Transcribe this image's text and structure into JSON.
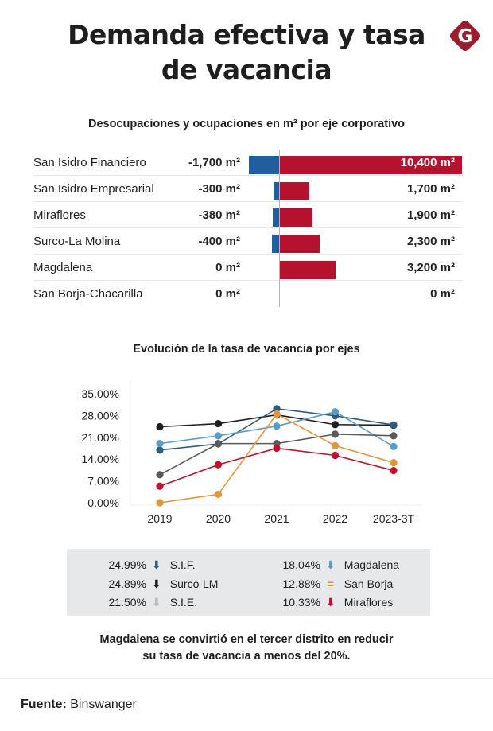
{
  "header": {
    "title_line1": "Demanda efectiva y tasa",
    "title_line2": "de vacancia",
    "logo_letter": "G",
    "logo_color": "#9b1c2c"
  },
  "colors": {
    "negative": "#1f5fa0",
    "positive": "#b5122e"
  },
  "chart_data": [
    {
      "type": "bar",
      "title": "Desocupaciones y ocupaciones en m² por eje corporativo",
      "orientation": "horizontal-diverging",
      "categories": [
        "San Isidro Financiero",
        "San Isidro Empresarial",
        "Miraflores",
        "Surco-La Molina",
        "Magdalena",
        "San Borja-Chacarilla"
      ],
      "series": [
        {
          "name": "Desocupaciones",
          "values": [
            -1700,
            -300,
            -380,
            -400,
            0,
            0
          ],
          "labels": [
            "-1,700 m²",
            "-300 m²",
            "-380 m²",
            "-400 m²",
            "0 m²",
            "0 m²"
          ],
          "color": "#1f5fa0"
        },
        {
          "name": "Ocupaciones",
          "values": [
            10400,
            1700,
            1900,
            2300,
            3200,
            0
          ],
          "labels": [
            "10,400 m²",
            "1,700 m²",
            "1,900 m²",
            "2,300 m²",
            "3,200 m²",
            "0 m²"
          ],
          "color": "#b5122e"
        }
      ],
      "xlabel": "",
      "ylabel": "",
      "unit": "m²"
    },
    {
      "type": "line",
      "title": "Evolución de la tasa de vacancia por ejes",
      "x": [
        "2019",
        "2020",
        "2021",
        "2022",
        "2023-3T"
      ],
      "ylim": [
        0,
        35
      ],
      "yticks": [
        "0.00%",
        "7.00%",
        "14.00%",
        "21.00%",
        "28.00%",
        "35.00%"
      ],
      "ytick_values": [
        0,
        7,
        14,
        21,
        28,
        35
      ],
      "xlabel": "",
      "ylabel": "",
      "grid": false,
      "series": [
        {
          "name": "Surco-LM",
          "color": "#1e1e1e",
          "values": [
            24.4,
            25.4,
            28.2,
            25.1,
            24.89
          ]
        },
        {
          "name": "S.I.F.",
          "color": "#2f5b7e",
          "values": [
            16.9,
            18.9,
            30.2,
            27.9,
            24.99
          ]
        },
        {
          "name": "Magdalena",
          "color": "#5b9bc8",
          "values": [
            19.0,
            21.5,
            24.6,
            29.2,
            18.04
          ]
        },
        {
          "name": "S.I.E.",
          "color": "#5a5a5a",
          "values": [
            9.0,
            19.0,
            19.0,
            22.0,
            21.5
          ]
        },
        {
          "name": "San Borja",
          "color": "#e3953a",
          "values": [
            0.0,
            2.7,
            28.5,
            18.3,
            12.88
          ]
        },
        {
          "name": "Miraflores",
          "color": "#c1122e",
          "values": [
            5.3,
            12.2,
            17.5,
            15.2,
            10.33
          ]
        }
      ]
    }
  ],
  "legend": [
    {
      "value": "24.99%",
      "arrow": "⬇",
      "arrow_color": "#2f5b7e",
      "name": "S.I.F."
    },
    {
      "value": "24.89%",
      "arrow": "⬇",
      "arrow_color": "#1e1e1e",
      "name": "Surco-LM"
    },
    {
      "value": "21.50%",
      "arrow": "⬇",
      "arrow_color": "#b8b8b8",
      "name": "S.I.E."
    },
    {
      "value": "18.04%",
      "arrow": "⬇",
      "arrow_color": "#5b9bc8",
      "name": "Magdalena"
    },
    {
      "value": "12.88%",
      "arrow": "=",
      "arrow_color": "#e3953a",
      "name": "San Borja"
    },
    {
      "value": "10.33%",
      "arrow": "⬇",
      "arrow_color": "#b5122e",
      "name": "Miraflores"
    }
  ],
  "note": {
    "line1": "Magdalena se convirtió en el tercer distrito en reducir",
    "line2": "su tasa de vacancia a menos del 20%."
  },
  "source": {
    "label": "Fuente:",
    "value": "Binswanger"
  }
}
